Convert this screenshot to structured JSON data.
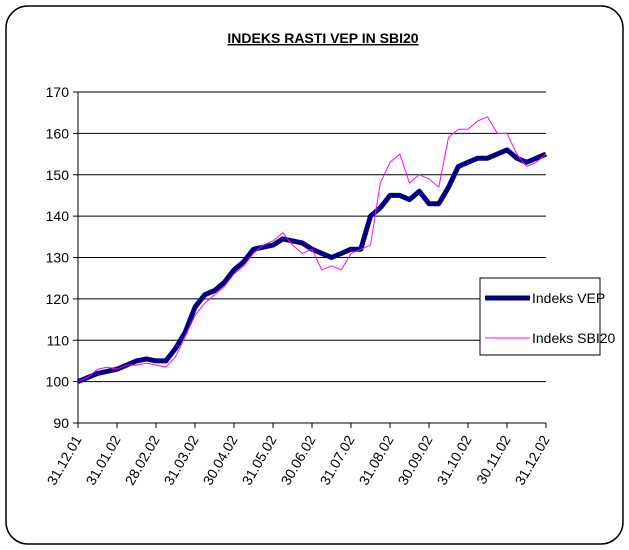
{
  "chart_data": {
    "type": "line",
    "title": "INDEKS RASTI VEP IN SBI20",
    "categories": [
      "31.12.01",
      null,
      null,
      null,
      "31.01.02",
      null,
      null,
      null,
      "28.02.02",
      null,
      null,
      null,
      "31.03.02",
      null,
      null,
      null,
      "30.04.02",
      null,
      null,
      null,
      "31.05.02",
      null,
      null,
      null,
      "30.06.02",
      null,
      null,
      null,
      "31.07.02",
      null,
      null,
      null,
      "31.08.02",
      null,
      null,
      null,
      "30.09.02",
      null,
      null,
      null,
      "31.10.02",
      null,
      null,
      null,
      "30.11.02",
      null,
      null,
      null,
      "31.12.02"
    ],
    "series": [
      {
        "name": "Indeks VEP",
        "color": "#000080",
        "values": [
          100,
          101,
          102,
          102.5,
          103,
          104,
          105,
          105.5,
          105,
          105,
          108,
          112,
          118,
          121,
          122,
          124,
          127,
          129,
          132,
          132.5,
          133,
          134.5,
          134,
          133.5,
          132,
          131,
          130,
          131,
          132,
          132,
          140,
          142,
          145,
          145,
          144,
          146,
          143,
          143,
          147,
          152,
          153,
          154,
          154,
          155,
          156,
          154,
          153,
          154,
          155
        ]
      },
      {
        "name": "Indeks SBI20",
        "color": "#ff00ff",
        "values": [
          100,
          101,
          103,
          103.5,
          103,
          104,
          104,
          104.5,
          104,
          103.5,
          106,
          111,
          116,
          119,
          121,
          123,
          126,
          128,
          131,
          133,
          134,
          136,
          133,
          131,
          132,
          127,
          128,
          127,
          131,
          132,
          133,
          148,
          153,
          155,
          148,
          150,
          149,
          147,
          159,
          161,
          161,
          163,
          164,
          160,
          160,
          155,
          152,
          153,
          155
        ]
      }
    ],
    "ylim": [
      90,
      170
    ],
    "yticks": [
      90,
      100,
      110,
      120,
      130,
      140,
      150,
      160,
      170
    ],
    "grid": true
  }
}
